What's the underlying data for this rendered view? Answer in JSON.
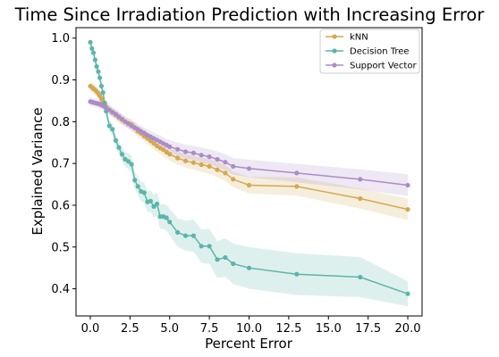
{
  "chart_data": {
    "type": "line",
    "title": "Time Since Irradiation Prediction with Increasing Error",
    "xlabel": "Percent Error",
    "ylabel": "Explained Variance",
    "xlim": [
      -0.9,
      20.9
    ],
    "ylim": [
      0.335,
      1.025
    ],
    "xticks": [
      "0.0",
      "2.5",
      "5.0",
      "7.5",
      "10.0",
      "12.5",
      "15.0",
      "17.5",
      "20.0"
    ],
    "yticks": [
      "0.4",
      "0.5",
      "0.6",
      "0.7",
      "0.8",
      "0.9",
      "1.0"
    ],
    "grid": false,
    "legend_position": "top-right",
    "series": [
      {
        "name": "kNN",
        "color": "#d4a852",
        "x": [
          0,
          0.1,
          0.2,
          0.3,
          0.4,
          0.5,
          0.6,
          0.7,
          0.8,
          0.9,
          1.0,
          1.2,
          1.4,
          1.6,
          1.8,
          2.0,
          2.2,
          2.4,
          2.6,
          2.8,
          3.0,
          3.2,
          3.4,
          3.6,
          3.8,
          4.0,
          4.2,
          4.4,
          4.6,
          4.8,
          5.0,
          5.5,
          6.0,
          6.5,
          7.0,
          7.5,
          8.0,
          8.5,
          9.0,
          10.0,
          13.0,
          17.0,
          20.0
        ],
        "y": [
          0.885,
          0.882,
          0.879,
          0.876,
          0.872,
          0.868,
          0.862,
          0.855,
          0.848,
          0.842,
          0.835,
          0.828,
          0.822,
          0.816,
          0.81,
          0.805,
          0.8,
          0.796,
          0.793,
          0.785,
          0.777,
          0.772,
          0.765,
          0.76,
          0.754,
          0.748,
          0.742,
          0.737,
          0.733,
          0.727,
          0.722,
          0.713,
          0.706,
          0.702,
          0.697,
          0.693,
          0.685,
          0.677,
          0.662,
          0.648,
          0.645,
          0.616,
          0.59
        ],
        "band": [
          0.012,
          0.012,
          0.012,
          0.012,
          0.012,
          0.012,
          0.012,
          0.012,
          0.012,
          0.012,
          0.012,
          0.012,
          0.012,
          0.012,
          0.012,
          0.012,
          0.012,
          0.012,
          0.013,
          0.013,
          0.013,
          0.013,
          0.013,
          0.014,
          0.014,
          0.014,
          0.014,
          0.014,
          0.015,
          0.015,
          0.015,
          0.016,
          0.016,
          0.017,
          0.017,
          0.018,
          0.018,
          0.019,
          0.019,
          0.02,
          0.022,
          0.024,
          0.026
        ]
      },
      {
        "name": "Decision Tree",
        "color": "#5bb5aa",
        "x": [
          0,
          0.1,
          0.2,
          0.3,
          0.4,
          0.5,
          0.6,
          0.7,
          0.8,
          0.9,
          1.0,
          1.2,
          1.4,
          1.6,
          1.8,
          2.0,
          2.2,
          2.4,
          2.6,
          2.8,
          3.0,
          3.2,
          3.4,
          3.6,
          3.8,
          4.0,
          4.2,
          4.4,
          4.6,
          4.8,
          5.0,
          5.5,
          6.0,
          6.5,
          7.0,
          7.5,
          8.0,
          8.5,
          9.0,
          10.0,
          13.0,
          17.0,
          20.0
        ],
        "y": [
          0.99,
          0.975,
          0.965,
          0.948,
          0.932,
          0.92,
          0.905,
          0.885,
          0.87,
          0.845,
          0.825,
          0.79,
          0.782,
          0.755,
          0.738,
          0.722,
          0.71,
          0.705,
          0.698,
          0.66,
          0.645,
          0.633,
          0.63,
          0.608,
          0.61,
          0.597,
          0.603,
          0.573,
          0.573,
          0.57,
          0.56,
          0.535,
          0.527,
          0.527,
          0.502,
          0.502,
          0.47,
          0.475,
          0.46,
          0.45,
          0.435,
          0.428,
          0.388
        ],
        "band": [
          0.005,
          0.006,
          0.006,
          0.007,
          0.007,
          0.008,
          0.008,
          0.009,
          0.01,
          0.011,
          0.012,
          0.013,
          0.014,
          0.015,
          0.016,
          0.017,
          0.018,
          0.019,
          0.02,
          0.021,
          0.022,
          0.023,
          0.024,
          0.025,
          0.026,
          0.027,
          0.028,
          0.029,
          0.03,
          0.031,
          0.032,
          0.034,
          0.036,
          0.038,
          0.04,
          0.042,
          0.044,
          0.046,
          0.048,
          0.05,
          0.05,
          0.048,
          0.03
        ]
      },
      {
        "name": "Support Vector",
        "color": "#ab8cc7",
        "x": [
          0,
          0.1,
          0.2,
          0.3,
          0.4,
          0.5,
          0.6,
          0.7,
          0.8,
          0.9,
          1.0,
          1.2,
          1.4,
          1.6,
          1.8,
          2.0,
          2.2,
          2.4,
          2.6,
          2.8,
          3.0,
          3.2,
          3.4,
          3.6,
          3.8,
          4.0,
          4.2,
          4.4,
          4.6,
          4.8,
          5.0,
          5.5,
          6.0,
          6.5,
          7.0,
          7.5,
          8.0,
          8.5,
          9.0,
          10.0,
          13.0,
          17.0,
          20.0
        ],
        "y": [
          0.848,
          0.847,
          0.846,
          0.845,
          0.844,
          0.843,
          0.842,
          0.84,
          0.838,
          0.836,
          0.833,
          0.828,
          0.823,
          0.818,
          0.812,
          0.806,
          0.8,
          0.795,
          0.79,
          0.786,
          0.782,
          0.777,
          0.773,
          0.768,
          0.764,
          0.76,
          0.756,
          0.752,
          0.748,
          0.744,
          0.74,
          0.734,
          0.728,
          0.725,
          0.72,
          0.716,
          0.71,
          0.703,
          0.693,
          0.688,
          0.677,
          0.662,
          0.648
        ],
        "band": [
          0.01,
          0.01,
          0.01,
          0.01,
          0.01,
          0.01,
          0.01,
          0.01,
          0.01,
          0.011,
          0.011,
          0.011,
          0.011,
          0.011,
          0.012,
          0.012,
          0.012,
          0.012,
          0.012,
          0.013,
          0.013,
          0.013,
          0.013,
          0.014,
          0.014,
          0.014,
          0.014,
          0.015,
          0.015,
          0.015,
          0.016,
          0.016,
          0.017,
          0.017,
          0.018,
          0.018,
          0.019,
          0.019,
          0.02,
          0.021,
          0.022,
          0.024,
          0.026
        ]
      }
    ]
  }
}
